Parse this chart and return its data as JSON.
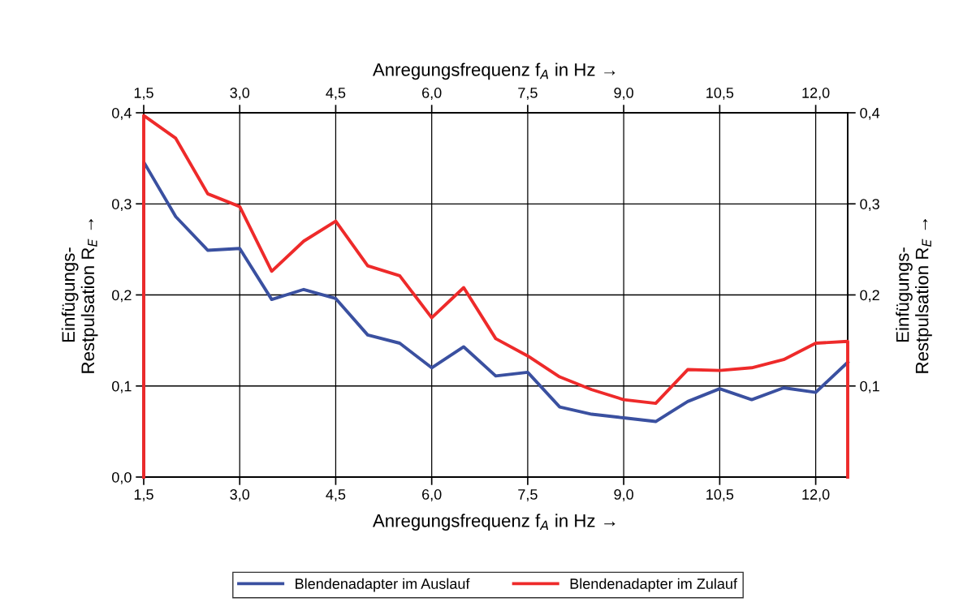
{
  "chart_data": {
    "type": "line",
    "xlabel": "Anregungsfrequenz f$_{A}$ in Hz →",
    "x2label": "Anregungsfrequenz f$_{A}$ in Hz →",
    "ylabel": "Einfügungs-\nRestpulsation R$_{E}$ →",
    "y2label": "Einfügungs-\nRestpulsation R$_{E}$ →",
    "xlim": [
      1.5,
      12.5
    ],
    "x2lim": [
      1.5,
      12.5
    ],
    "ylim": [
      0,
      0.4
    ],
    "y2lim": [
      0,
      0.4
    ],
    "xticks": [
      {
        "value": 1.5,
        "label": "1,5"
      },
      {
        "value": 3.0,
        "label": "3,0"
      },
      {
        "value": 4.5,
        "label": "4,5"
      },
      {
        "value": 6.0,
        "label": "6,0"
      },
      {
        "value": 7.5,
        "label": "7,5"
      },
      {
        "value": 9.0,
        "label": "9,0"
      },
      {
        "value": 10.5,
        "label": "10,5"
      },
      {
        "value": 12.0,
        "label": "12,0"
      }
    ],
    "x2ticks": [
      {
        "value": 1.5,
        "label": "1,5"
      },
      {
        "value": 3.0,
        "label": "3,0"
      },
      {
        "value": 4.5,
        "label": "4,5"
      },
      {
        "value": 6.0,
        "label": "6,0"
      },
      {
        "value": 7.5,
        "label": "7,5"
      },
      {
        "value": 9.0,
        "label": "9,0"
      },
      {
        "value": 10.5,
        "label": "10,5"
      },
      {
        "value": 12.0,
        "label": "12,0"
      }
    ],
    "yticks": [
      {
        "value": 0.0,
        "label": "0,0"
      },
      {
        "value": 0.1,
        "label": "0,1"
      },
      {
        "value": 0.2,
        "label": "0,2"
      },
      {
        "value": 0.3,
        "label": "0,3"
      },
      {
        "value": 0.4,
        "label": "0,4"
      }
    ],
    "y2ticks": [
      {
        "value": 0.1,
        "label": "0,1"
      },
      {
        "value": 0.2,
        "label": "0,2"
      },
      {
        "value": 0.3,
        "label": "0,3"
      },
      {
        "value": 0.4,
        "label": "0,4"
      }
    ],
    "grid": true,
    "legend": "bottom",
    "line_style": "solid",
    "marker": "none",
    "series": [
      {
        "name": "Blendenadapter im Auslauf",
        "color": "#3a50a0",
        "axis": "y2",
        "x": [
          1.5,
          1.5,
          2.0,
          2.5,
          3.0,
          3.5,
          4.0,
          4.5,
          5.0,
          5.5,
          6.0,
          6.5,
          7.0,
          7.5,
          8.0,
          8.5,
          9.0,
          9.5,
          10.0,
          10.5,
          11.0,
          11.5,
          12.0,
          12.5
        ],
        "values": [
          0,
          0.346,
          0.286,
          0.249,
          0.251,
          0.195,
          0.206,
          0.196,
          0.156,
          0.147,
          0.12,
          0.143,
          0.111,
          0.115,
          0.077,
          0.069,
          0.065,
          0.061,
          0.083,
          0.097,
          0.085,
          0.098,
          0.093,
          0.126
        ]
      },
      {
        "name": "Blendenadapter im Zulauf",
        "color": "#ee2a2a",
        "x": [
          1.5,
          1.5,
          2.0,
          2.5,
          3.0,
          3.5,
          4.0,
          4.5,
          5.0,
          5.5,
          6.0,
          6.5,
          7.0,
          7.5,
          8.0,
          8.5,
          9.0,
          9.5,
          10.0,
          10.5,
          11.0,
          11.5,
          12.0,
          12.5,
          12.5
        ],
        "values": [
          0,
          0.397,
          0.372,
          0.311,
          0.297,
          0.226,
          0.259,
          0.281,
          0.232,
          0.221,
          0.175,
          0.208,
          0.152,
          0.133,
          0.11,
          0.096,
          0.085,
          0.081,
          0.118,
          0.117,
          0.12,
          0.129,
          0.147,
          0.149,
          0
        ]
      }
    ]
  }
}
